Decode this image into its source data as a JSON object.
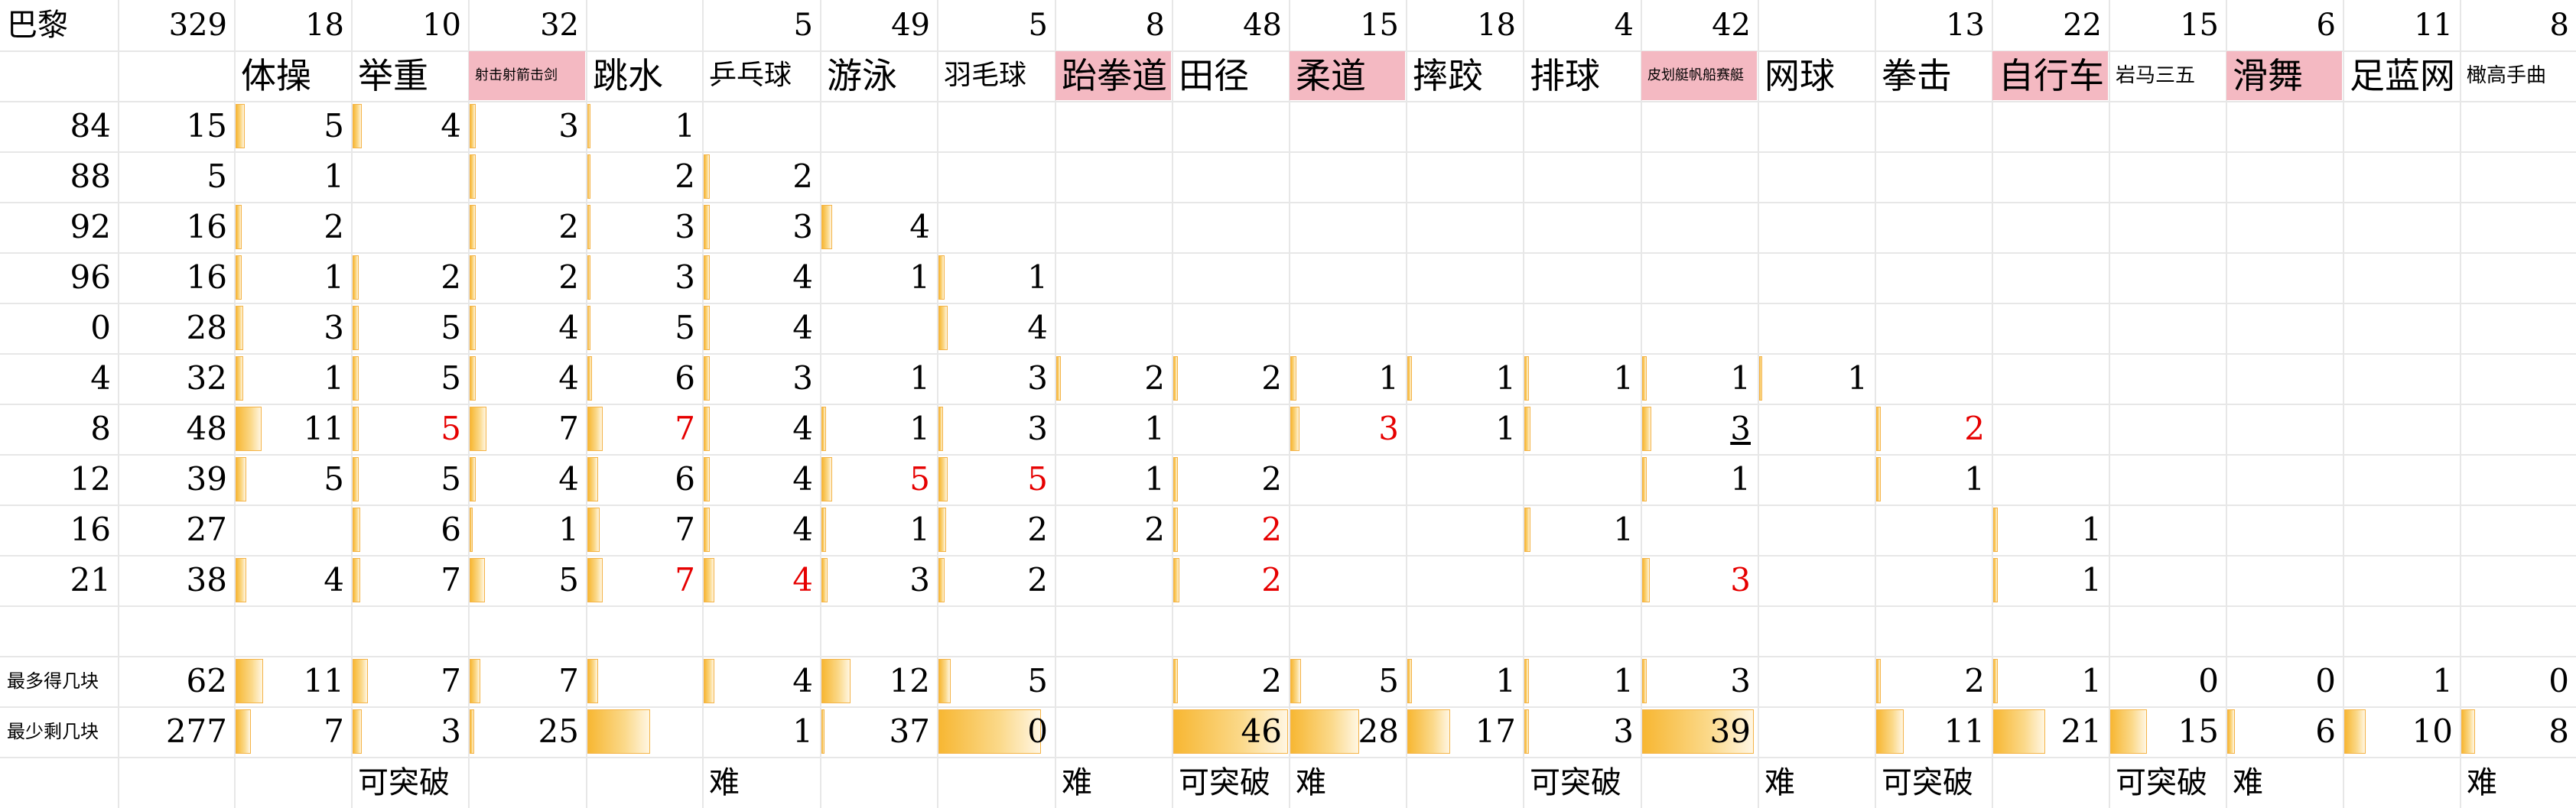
{
  "header_row": [
    "巴黎",
    "329",
    "18",
    "10",
    "32",
    "",
    "5",
    "49",
    "5",
    "8",
    "48",
    "15",
    "18",
    "4",
    "42",
    "",
    "13",
    "22",
    "15",
    "6",
    "11",
    "8"
  ],
  "sports": [
    {
      "name": "体操",
      "pink": false,
      "size": "big"
    },
    {
      "name": "举重",
      "pink": false,
      "size": "big"
    },
    {
      "name": "射击射箭击剑",
      "pink": true,
      "size": "tiny"
    },
    {
      "name": "跳水",
      "pink": false,
      "size": "big"
    },
    {
      "name": "乒乓球",
      "pink": false,
      "size": "mid"
    },
    {
      "name": "游泳",
      "pink": false,
      "size": "big"
    },
    {
      "name": "羽毛球",
      "pink": false,
      "size": "mid"
    },
    {
      "name": "跆拳道",
      "pink": true,
      "size": "big"
    },
    {
      "name": "田径",
      "pink": false,
      "size": "big"
    },
    {
      "name": "柔道",
      "pink": true,
      "size": "big"
    },
    {
      "name": "摔跤",
      "pink": false,
      "size": "big"
    },
    {
      "name": "排球",
      "pink": false,
      "size": "big"
    },
    {
      "name": "皮划艇帆船赛艇",
      "pink": true,
      "size": "tiny"
    },
    {
      "name": "网球",
      "pink": false,
      "size": "big"
    },
    {
      "name": "拳击",
      "pink": false,
      "size": "big"
    },
    {
      "name": "自行车",
      "pink": true,
      "size": "big"
    },
    {
      "name": "岩马三五",
      "pink": false,
      "size": "small"
    },
    {
      "name": "滑舞",
      "pink": true,
      "size": "big"
    },
    {
      "name": "足蓝网",
      "pink": false,
      "size": "big"
    },
    {
      "name": "橄高手曲",
      "pink": false,
      "size": "small"
    }
  ],
  "year_rows": [
    {
      "year": "84",
      "total": "15",
      "cells": [
        "5",
        "4",
        "3",
        "1",
        "",
        "",
        "",
        "",
        "",
        "",
        "",
        "",
        "",
        "",
        "",
        "",
        "",
        "",
        "",
        ""
      ]
    },
    {
      "year": "88",
      "total": "5",
      "cells": [
        "1",
        "",
        "",
        "2",
        "2",
        "",
        "",
        "",
        "",
        "",
        "",
        "",
        "",
        "",
        "",
        "",
        "",
        "",
        "",
        ""
      ]
    },
    {
      "year": "92",
      "total": "16",
      "cells": [
        "2",
        "",
        "2",
        "3",
        "3",
        "4",
        "",
        "",
        "",
        "",
        "",
        "",
        "",
        "",
        "",
        "",
        "",
        "",
        "",
        ""
      ]
    },
    {
      "year": "96",
      "total": "16",
      "cells": [
        "1",
        "2",
        "2",
        "3",
        "4",
        "1",
        "1",
        "",
        "",
        "",
        "",
        "",
        "",
        "",
        "",
        "",
        "",
        "",
        "",
        ""
      ]
    },
    {
      "year": "0",
      "total": "28",
      "cells": [
        "3",
        "5",
        "4",
        "5",
        "4",
        "",
        "4",
        "",
        "",
        "",
        "",
        "",
        "",
        "",
        "",
        "",
        "",
        "",
        "",
        ""
      ]
    },
    {
      "year": "4",
      "total": "32",
      "cells": [
        "1",
        "5",
        "4",
        "6",
        "3",
        "1",
        "3",
        "2",
        "2",
        "1",
        "1",
        "1",
        "1",
        "1",
        "",
        "",
        "",
        "",
        "",
        ""
      ]
    },
    {
      "year": "8",
      "total": "48",
      "cells": [
        "11",
        "5",
        "7",
        "7",
        "4",
        "1",
        "3",
        "1",
        "",
        "3",
        "1",
        "",
        "3",
        "",
        "2",
        "",
        "",
        "",
        "",
        ""
      ]
    },
    {
      "year": "12",
      "total": "39",
      "cells": [
        "5",
        "5",
        "4",
        "6",
        "4",
        "5",
        "5",
        "1",
        "2",
        "",
        "",
        "",
        "1",
        "",
        "1",
        "",
        "",
        "",
        "",
        ""
      ]
    },
    {
      "year": "16",
      "total": "27",
      "cells": [
        "",
        "6",
        "1",
        "7",
        "4",
        "1",
        "2",
        "2",
        "2",
        "",
        "",
        "1",
        "",
        "",
        "",
        "1",
        "",
        "",
        "",
        ""
      ]
    },
    {
      "year": "21",
      "total": "38",
      "cells": [
        "4",
        "7",
        "5",
        "7",
        "4",
        "3",
        "2",
        "",
        "2",
        "",
        "",
        "",
        "3",
        "",
        "",
        "1",
        "",
        "",
        "",
        ""
      ]
    }
  ],
  "max_row": {
    "label": "最多得几块",
    "total": "62",
    "cells": [
      "11",
      "7",
      "7",
      "",
      "4",
      "12",
      "5",
      "",
      "2",
      "5",
      "1",
      "1",
      "3",
      "",
      "2",
      "1",
      "0",
      "0",
      "1",
      "0"
    ]
  },
  "min_row": {
    "label": "最少剩几块",
    "total": "277",
    "cells": [
      "7",
      "3",
      "25",
      "",
      "1",
      "37",
      "0",
      "",
      "46",
      "28",
      "17",
      "3",
      "39",
      "",
      "11",
      "21",
      "15",
      "6",
      "10",
      "8"
    ]
  },
  "notes": [
    "",
    "",
    "",
    "可突破",
    "",
    "",
    "难",
    "",
    "",
    "难",
    "可突破",
    "难",
    "",
    "可突破",
    "",
    "难",
    "可突破",
    "",
    "可突破",
    "难",
    "",
    "难"
  ]
}
